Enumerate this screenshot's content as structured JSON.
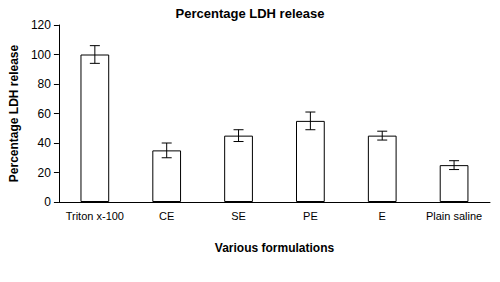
{
  "chart_data": {
    "type": "bar",
    "title": "Percentage LDH release",
    "x_label": "Various formulations",
    "y_label": "Percentage LDH release",
    "categories": [
      "Triton x-100",
      "CE",
      "SE",
      "PE",
      "E",
      "Plain saline"
    ],
    "values": [
      100,
      35,
      45,
      55,
      45,
      25
    ],
    "errors": [
      6,
      5,
      4,
      6,
      3,
      3
    ],
    "color": "#ffffff",
    "ylim": [
      0,
      120
    ],
    "yticks": [
      0,
      20,
      40,
      60,
      80,
      100,
      120
    ],
    "grid": false
  }
}
